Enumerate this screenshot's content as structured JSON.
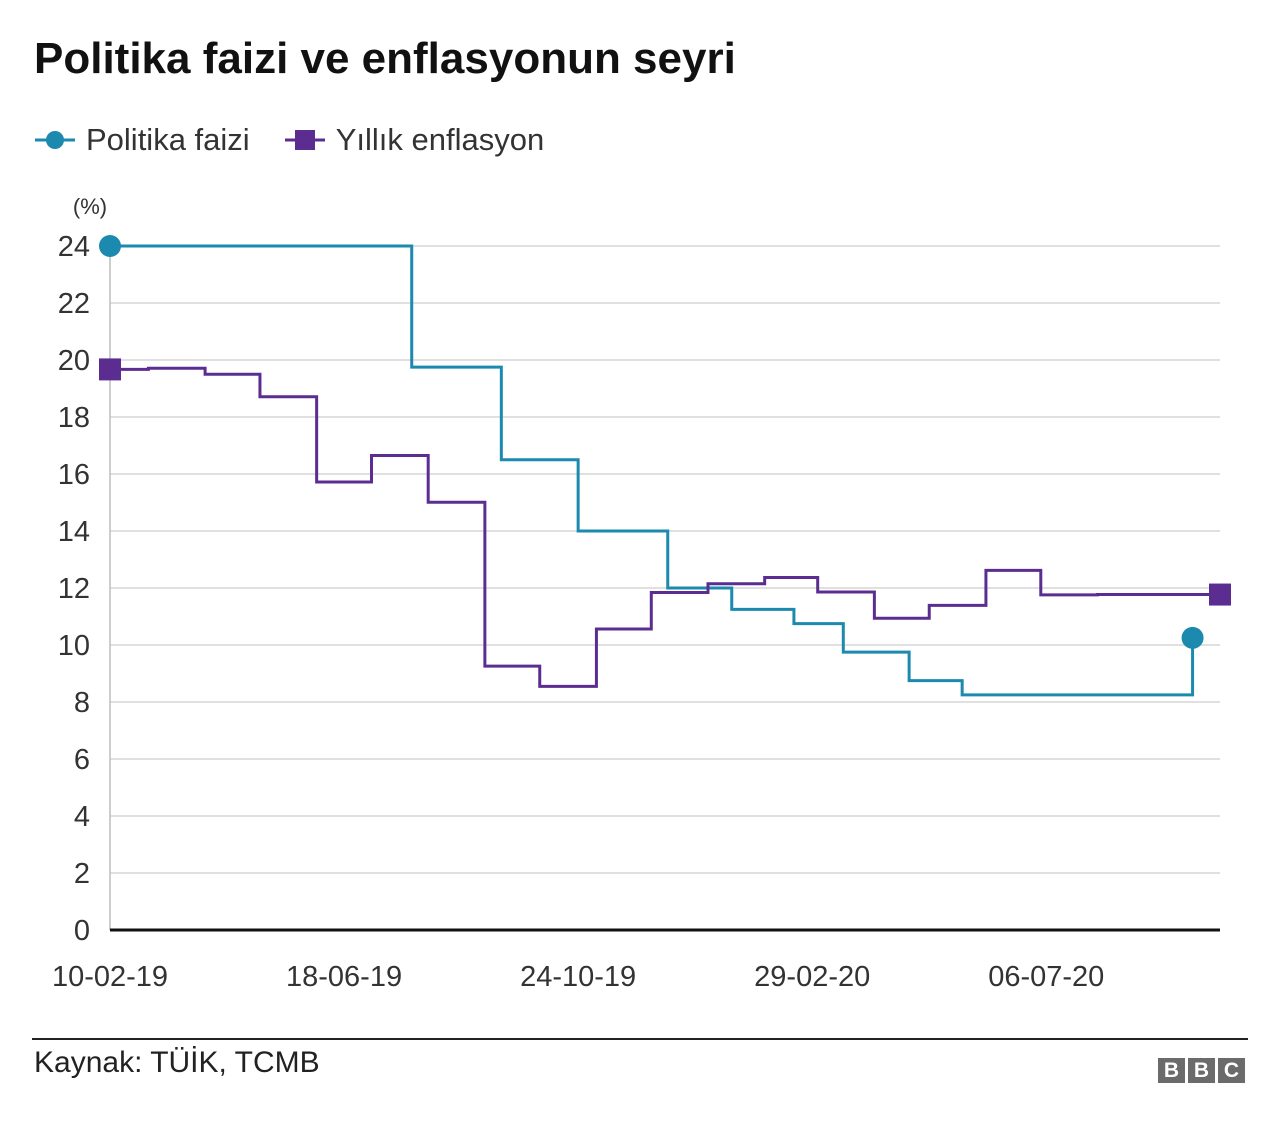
{
  "title": "Politika faizi ve enflasyonun seyri",
  "legend": [
    {
      "label": "Politika faizi",
      "color": "#1b8aae",
      "marker": "circle"
    },
    {
      "label": "Yıllık enflasyon",
      "color": "#5c2d91",
      "marker": "square"
    }
  ],
  "source": "Kaynak: TÜİK, TCMB",
  "logo": [
    "B",
    "B",
    "C"
  ],
  "chart_data": {
    "type": "line",
    "step": true,
    "title": "Politika faizi ve enflasyonun seyri",
    "ylabel": "(%)",
    "xlabel": "",
    "ylim": [
      0,
      24
    ],
    "yticks": [
      0,
      2,
      4,
      6,
      8,
      10,
      12,
      14,
      16,
      18,
      20,
      22,
      24
    ],
    "xlim": [
      "10-02-19",
      "09-10-20"
    ],
    "xticks": [
      "10-02-19",
      "18-06-19",
      "24-10-19",
      "29-02-20",
      "06-07-20"
    ],
    "grid": "horizontal",
    "legend_position": "top-left",
    "series": [
      {
        "name": "Politika faizi",
        "color": "#1b8aae",
        "marker": "circle",
        "points": [
          {
            "x": "10-02-19",
            "y": 24
          },
          {
            "x": "25-07-19",
            "y": 19.75
          },
          {
            "x": "12-09-19",
            "y": 16.5
          },
          {
            "x": "24-10-19",
            "y": 14
          },
          {
            "x": "12-12-19",
            "y": 12
          },
          {
            "x": "16-01-20",
            "y": 11.25
          },
          {
            "x": "19-02-20",
            "y": 10.75
          },
          {
            "x": "17-03-20",
            "y": 9.75
          },
          {
            "x": "22-04-20",
            "y": 8.75
          },
          {
            "x": "21-05-20",
            "y": 8.25
          },
          {
            "x": "24-09-20",
            "y": 10.25
          }
        ]
      },
      {
        "name": "Yıllık enflasyon",
        "color": "#5c2d91",
        "marker": "square",
        "points": [
          {
            "x": "10-02-19",
            "y": 19.67
          },
          {
            "x": "03-03-19",
            "y": 19.71
          },
          {
            "x": "03-04-19",
            "y": 19.5
          },
          {
            "x": "03-05-19",
            "y": 18.71
          },
          {
            "x": "03-06-19",
            "y": 15.72
          },
          {
            "x": "03-07-19",
            "y": 16.65
          },
          {
            "x": "03-08-19",
            "y": 15.01
          },
          {
            "x": "03-09-19",
            "y": 9.26
          },
          {
            "x": "03-10-19",
            "y": 8.55
          },
          {
            "x": "03-11-19",
            "y": 10.56
          },
          {
            "x": "03-12-19",
            "y": 11.84
          },
          {
            "x": "03-01-20",
            "y": 12.15
          },
          {
            "x": "03-02-20",
            "y": 12.37
          },
          {
            "x": "03-03-20",
            "y": 11.86
          },
          {
            "x": "03-04-20",
            "y": 10.94
          },
          {
            "x": "03-05-20",
            "y": 11.39
          },
          {
            "x": "03-06-20",
            "y": 12.62
          },
          {
            "x": "03-07-20",
            "y": 11.76
          },
          {
            "x": "03-08-20",
            "y": 11.77
          },
          {
            "x": "09-10-20",
            "y": 11.77
          }
        ]
      }
    ]
  }
}
